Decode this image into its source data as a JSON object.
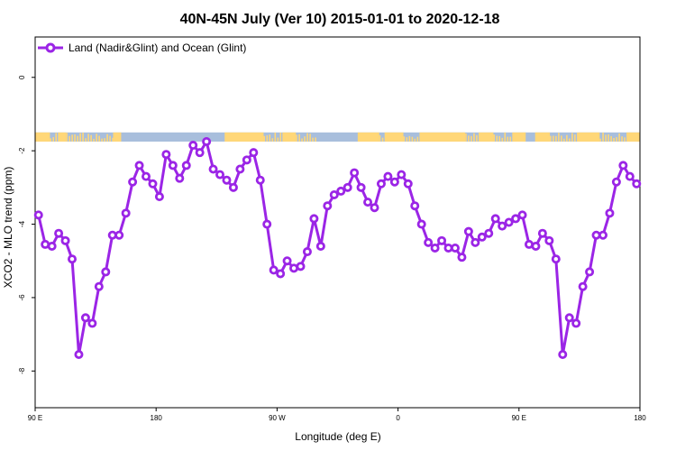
{
  "chart_data": {
    "type": "line",
    "title": "40N-45N July (Ver 10)   2015-01-01 to 2020-12-18",
    "xlabel": "Longitude (deg E)",
    "ylabel": "XCO2 - MLO trend (ppm)",
    "xlim": [
      90,
      540
    ],
    "ylim": [
      -9,
      1.1
    ],
    "x_ticks": [
      {
        "value": 90,
        "label": "90 E"
      },
      {
        "value": 180,
        "label": "180"
      },
      {
        "value": 270,
        "label": "90 W"
      },
      {
        "value": 360,
        "label": "0"
      },
      {
        "value": 450,
        "label": "90 E"
      },
      {
        "value": 540,
        "label": "180"
      }
    ],
    "y_ticks": [
      {
        "value": 0,
        "label": "0"
      },
      {
        "value": -2,
        "label": "-2"
      },
      {
        "value": -4,
        "label": "-4"
      },
      {
        "value": -6,
        "label": "-6"
      },
      {
        "value": -8,
        "label": "-8"
      }
    ],
    "legend": {
      "position": "top-left"
    },
    "series": [
      {
        "name": "Land (Nadir&Glint) and Ocean (Glint)",
        "color": "#9b25e6",
        "x": [
          92.5,
          97.5,
          102.5,
          107.5,
          112.5,
          117.5,
          122.5,
          127.5,
          132.5,
          137.5,
          142.5,
          147.5,
          152.5,
          157.5,
          162.5,
          167.5,
          172.5,
          177.5,
          182.5,
          187.5,
          192.5,
          197.5,
          202.5,
          207.5,
          212.5,
          217.5,
          222.5,
          227.5,
          232.5,
          237.5,
          242.5,
          247.5,
          252.5,
          257.5,
          262.5,
          267.5,
          272.5,
          277.5,
          282.5,
          287.5,
          292.5,
          297.5,
          302.5,
          307.5,
          312.5,
          317.5,
          322.5,
          327.5,
          332.5,
          337.5,
          342.5,
          347.5,
          352.5,
          357.5,
          362.5,
          367.5,
          372.5,
          377.5,
          382.5,
          387.5,
          392.5,
          397.5,
          402.5,
          407.5,
          412.5,
          417.5,
          422.5,
          427.5,
          432.5,
          437.5,
          442.5,
          447.5,
          452.5,
          457.5,
          462.5,
          467.5,
          472.5,
          477.5,
          482.5,
          487.5,
          492.5,
          497.5,
          502.5,
          507.5,
          512.5,
          517.5,
          522.5,
          527.5,
          532.5,
          537.5
        ],
        "y": [
          -3.75,
          -4.55,
          -4.6,
          -4.25,
          -4.45,
          -4.95,
          -7.55,
          -6.55,
          -6.7,
          -5.7,
          -5.3,
          -4.3,
          -4.3,
          -3.7,
          -2.85,
          -2.4,
          -2.7,
          -2.9,
          -3.25,
          -2.1,
          -2.4,
          -2.75,
          -2.4,
          -1.85,
          -2.05,
          -1.75,
          -2.5,
          -2.65,
          -2.8,
          -3.0,
          -2.5,
          -2.25,
          -2.05,
          -2.8,
          -4.0,
          -5.25,
          -5.35,
          -5.0,
          -5.2,
          -5.15,
          -4.75,
          -3.85,
          -4.6,
          -3.5,
          -3.2,
          -3.1,
          -3.0,
          -2.6,
          -3.0,
          -3.4,
          -3.55,
          -2.9,
          -2.7,
          -2.85,
          -2.65,
          -2.9,
          -3.5,
          -4.0,
          -4.5,
          -4.65,
          -4.45,
          -4.65,
          -4.65,
          -4.9,
          -4.2,
          -4.5,
          -4.35,
          -4.25,
          -3.85,
          -4.05,
          -3.95,
          -3.85,
          -3.75,
          -4.55,
          -4.6,
          -4.25,
          -4.45,
          -4.95,
          -7.55,
          -6.55,
          -6.7,
          -5.7,
          -5.3,
          -4.3,
          -4.3,
          -3.7,
          -2.85,
          -2.4,
          -2.7,
          -2.9
        ]
      }
    ],
    "surface_band": {
      "colors": {
        "land": "#ffd778",
        "ocean": "#a8bedc"
      },
      "y_range": [
        -1.75,
        -1.5
      ],
      "land_segments": [
        [
          90,
          101
        ],
        [
          107,
          113
        ],
        [
          148,
          154
        ],
        [
          231,
          260
        ],
        [
          274,
          284
        ],
        [
          330,
          346
        ],
        [
          350,
          364
        ],
        [
          376,
          410
        ],
        [
          420,
          431
        ],
        [
          445,
          455
        ],
        [
          462,
          473
        ],
        [
          494,
          510
        ],
        [
          530,
          540
        ]
      ],
      "mixed_segments": [
        [
          101,
          107
        ],
        [
          113,
          148
        ],
        [
          260,
          274
        ],
        [
          284,
          300
        ],
        [
          346,
          350
        ],
        [
          364,
          376
        ],
        [
          410,
          420
        ],
        [
          431,
          445
        ],
        [
          473,
          494
        ],
        [
          510,
          530
        ]
      ]
    }
  }
}
